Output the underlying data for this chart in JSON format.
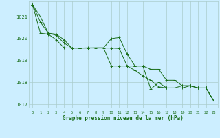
{
  "bg_color": "#cceeff",
  "grid_color": "#aacccc",
  "line_color": "#1a6e1a",
  "marker_color": "#1a6e1a",
  "xlabel": "Graphe pression niveau de la mer (hPa)",
  "xlabel_color": "#1a6e1a",
  "ylabel_color": "#1a6e1a",
  "hours": [
    0,
    1,
    2,
    3,
    4,
    5,
    6,
    7,
    8,
    9,
    10,
    11,
    12,
    13,
    14,
    15,
    16,
    17,
    18,
    19,
    20,
    21,
    22,
    23
  ],
  "series1": [
    1021.55,
    1020.75,
    1020.25,
    1020.15,
    1019.8,
    1019.57,
    1019.57,
    1019.57,
    1019.58,
    1019.58,
    1020.0,
    1020.05,
    1019.3,
    1018.75,
    1018.75,
    1017.7,
    1018.0,
    1017.75,
    1017.75,
    1017.85,
    1017.85,
    1017.75,
    1017.75,
    1017.15
  ],
  "series2": [
    1021.55,
    1020.25,
    1020.2,
    1019.95,
    1019.58,
    1019.57,
    1019.57,
    1019.58,
    1019.58,
    1019.58,
    1018.75,
    1018.75,
    1018.75,
    1018.75,
    1018.75,
    1018.6,
    1018.6,
    1018.1,
    1018.1,
    1017.85,
    1017.85,
    1017.75,
    1017.75,
    1017.15
  ],
  "series3": [
    1021.55,
    1021.0,
    1020.25,
    1020.2,
    1019.95,
    1019.57,
    1019.57,
    1019.57,
    1019.57,
    1019.57,
    1019.57,
    1019.55,
    1018.75,
    1018.55,
    1018.3,
    1018.1,
    1017.8,
    1017.75,
    1017.75,
    1017.75,
    1017.85,
    1017.75,
    1017.75,
    1017.15
  ],
  "ylim": [
    1016.85,
    1021.7
  ],
  "yticks": [
    1017,
    1018,
    1019,
    1020,
    1021
  ],
  "xticks": [
    0,
    1,
    2,
    3,
    4,
    5,
    6,
    7,
    8,
    9,
    10,
    11,
    12,
    13,
    14,
    15,
    16,
    17,
    18,
    19,
    20,
    21,
    22,
    23
  ]
}
